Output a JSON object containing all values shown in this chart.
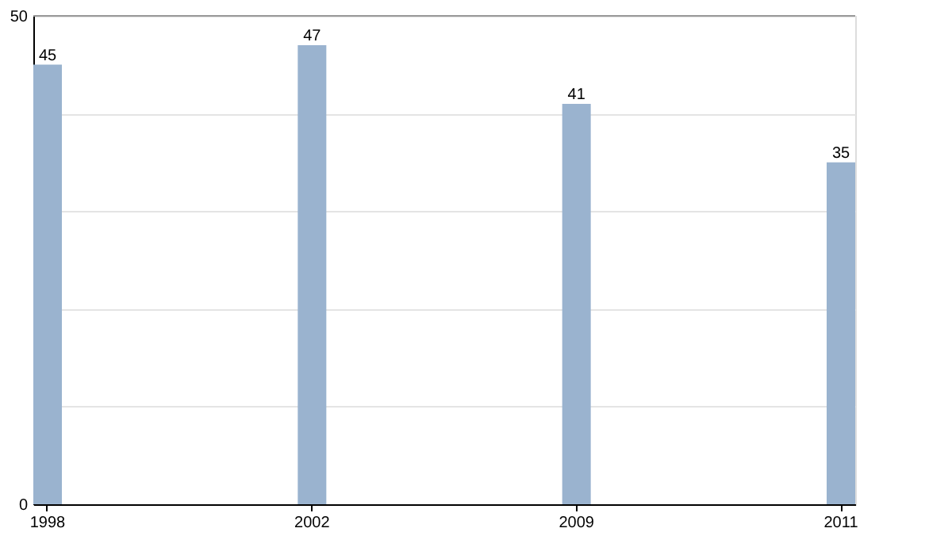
{
  "chart_data": {
    "type": "bar",
    "categories": [
      "1998",
      "2002",
      "2009",
      "2011"
    ],
    "values": [
      45,
      47,
      41,
      35
    ],
    "color": "#9ab3cf",
    "ylim": [
      0,
      50
    ],
    "yticks": [
      0,
      {
        "value": 10,
        "label": null
      },
      {
        "value": 20,
        "label": null
      },
      {
        "value": 30,
        "label": null
      },
      {
        "value": 40,
        "label": null
      },
      50
    ],
    "grid": "y",
    "data_labels": true
  }
}
